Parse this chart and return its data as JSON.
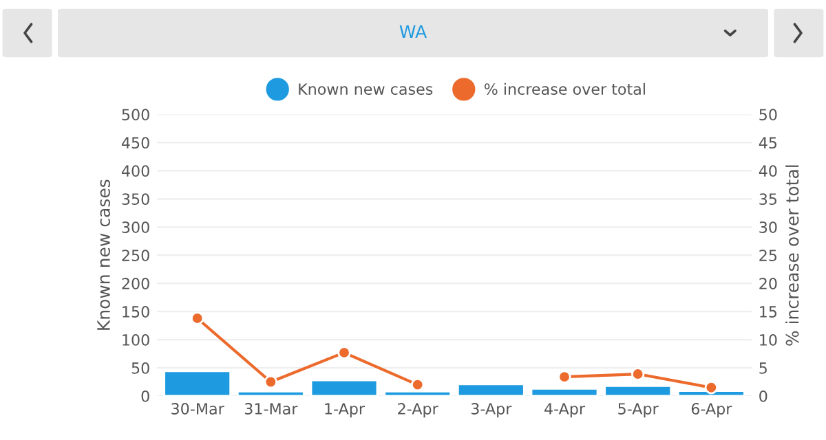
{
  "chart_data": {
    "type": "bar",
    "title": "WA",
    "categories": [
      "30-Mar",
      "31-Mar",
      "1-Apr",
      "2-Apr",
      "3-Apr",
      "4-Apr",
      "5-Apr",
      "6-Apr"
    ],
    "series": [
      {
        "name": "Known new cases",
        "color": "#1e9be0",
        "values": [
          44,
          8,
          28,
          8,
          21,
          13,
          18,
          9
        ]
      },
      {
        "name": "% increase over total",
        "color": "#ec6a2c",
        "type": "line",
        "axis": "y2",
        "marker": "circle",
        "values": [
          13.8,
          2.5,
          7.7,
          2.0,
          null,
          3.4,
          3.9,
          1.5
        ]
      }
    ],
    "ylabel": "Known new cases",
    "y2label": "% increase over total",
    "ylim": [
      0,
      500
    ],
    "yticks": [
      0,
      50,
      100,
      150,
      200,
      250,
      300,
      350,
      400,
      450,
      500
    ],
    "y2lim": [
      0,
      50
    ],
    "y2ticks": [
      0,
      5,
      10,
      15,
      20,
      25,
      30,
      35,
      40,
      45,
      50
    ],
    "grid": "y",
    "legend": "top"
  }
}
